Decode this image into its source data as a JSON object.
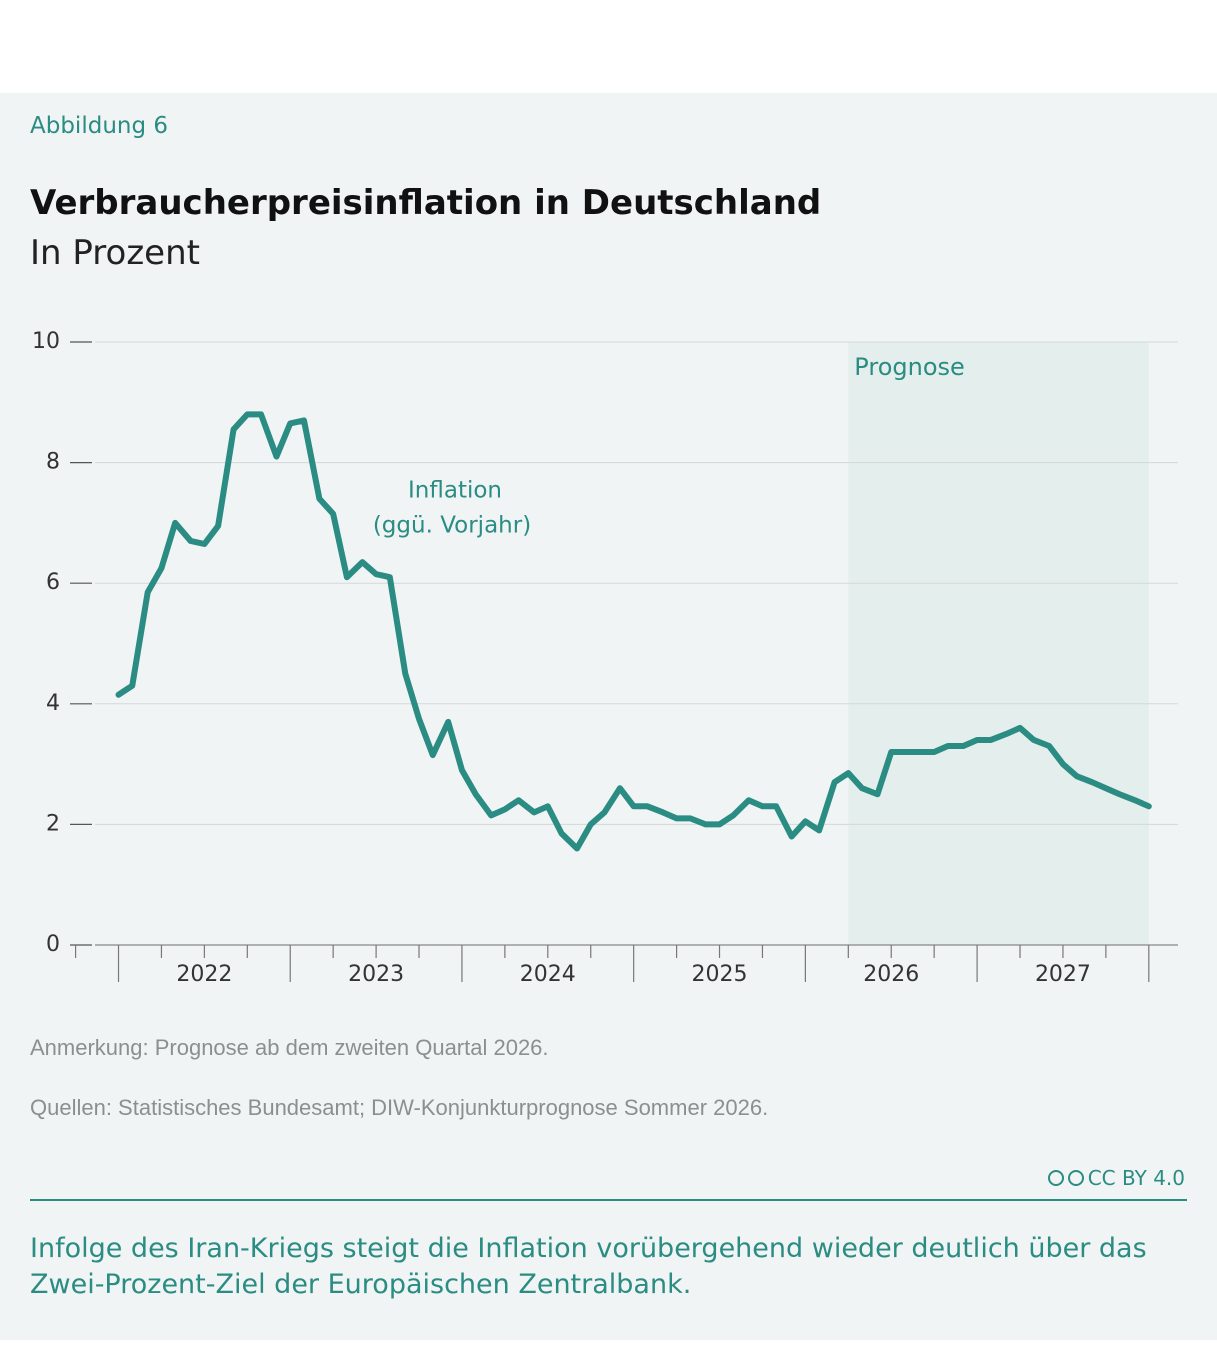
{
  "figure_label": "Abbildung 6",
  "chart_data": {
    "type": "line",
    "title": "Verbraucherpreisinflation in Deutschland",
    "subtitle": "In Prozent",
    "x": [
      2022,
      2022.08,
      2022.17,
      2022.25,
      2022.33,
      2022.42,
      2022.5,
      2022.58,
      2022.67,
      2022.75,
      2022.83,
      2022.92,
      2023,
      2023.08,
      2023.17,
      2023.25,
      2023.33,
      2023.42,
      2023.5,
      2023.58,
      2023.67,
      2023.75,
      2023.83,
      2023.92,
      2024,
      2024.08,
      2024.17,
      2024.25,
      2024.33,
      2024.42,
      2024.5,
      2024.58,
      2024.67,
      2024.75,
      2024.83,
      2024.92,
      2025,
      2025.08,
      2025.17,
      2025.25,
      2025.33,
      2025.42,
      2025.5,
      2025.58,
      2025.67,
      2025.75,
      2025.83,
      2025.92,
      2026,
      2026.08,
      2026.17,
      2026.25,
      2026.33,
      2026.42,
      2026.5,
      2026.58,
      2026.67,
      2026.75,
      2026.83,
      2026.92,
      2027,
      2027.08,
      2027.17,
      2027.25,
      2027.33,
      2027.42,
      2027.5,
      2027.58,
      2027.67,
      2027.75,
      2027.83,
      2027.92,
      2028
    ],
    "series": [
      {
        "name": "Inflation",
        "annotation": "(ggü. Vorjahr)",
        "color": "#2a8c82",
        "values": [
          4.15,
          4.3,
          5.85,
          6.25,
          7.0,
          6.7,
          6.65,
          6.95,
          8.55,
          8.8,
          8.8,
          8.1,
          8.65,
          8.7,
          7.4,
          7.15,
          6.1,
          6.35,
          6.15,
          6.1,
          4.5,
          3.75,
          3.15,
          3.7,
          2.9,
          2.5,
          2.15,
          2.25,
          2.4,
          2.2,
          2.3,
          1.85,
          1.6,
          2.0,
          2.2,
          2.6,
          2.3,
          2.3,
          2.2,
          2.1,
          2.1,
          2.0,
          2.0,
          2.15,
          2.4,
          2.3,
          2.3,
          1.8,
          2.05,
          1.9,
          2.7,
          2.85,
          2.6,
          2.5,
          3.2,
          3.2,
          3.2,
          3.2,
          3.3,
          3.3,
          3.4,
          3.4,
          3.5,
          3.6,
          3.4,
          3.3,
          3.0,
          2.8,
          2.7,
          2.6,
          2.5,
          2.4,
          2.3
        ]
      }
    ],
    "forecast": {
      "label": "Prognose",
      "from": 2026.25,
      "to": 2028,
      "color": "#e4eeec"
    },
    "xlim": [
      2021.7,
      2028.17
    ],
    "xticks": [
      {
        "value": 2022.5,
        "label": "2022"
      },
      {
        "value": 2023.5,
        "label": "2023"
      },
      {
        "value": 2024.5,
        "label": "2024"
      },
      {
        "value": 2025.5,
        "label": "2025"
      },
      {
        "value": 2026.5,
        "label": "2026"
      },
      {
        "value": 2027.5,
        "label": "2027"
      }
    ],
    "ylim": [
      0,
      10
    ],
    "yticks": [
      0,
      2,
      4,
      6,
      8,
      10
    ],
    "grid": true
  },
  "note": "Anmerkung: Prognose ab dem zweiten Quartal 2026.",
  "source": "Quellen: Statistisches Bundesamt; DIW-Konjunkturprognose Sommer 2026.",
  "license": "CC BY 4.0",
  "caption": "Infolge des Iran-Kriegs steigt die Inflation vorübergehend wieder deutlich über das Zwei-Prozent-Ziel der Europäischen Zentralbank."
}
